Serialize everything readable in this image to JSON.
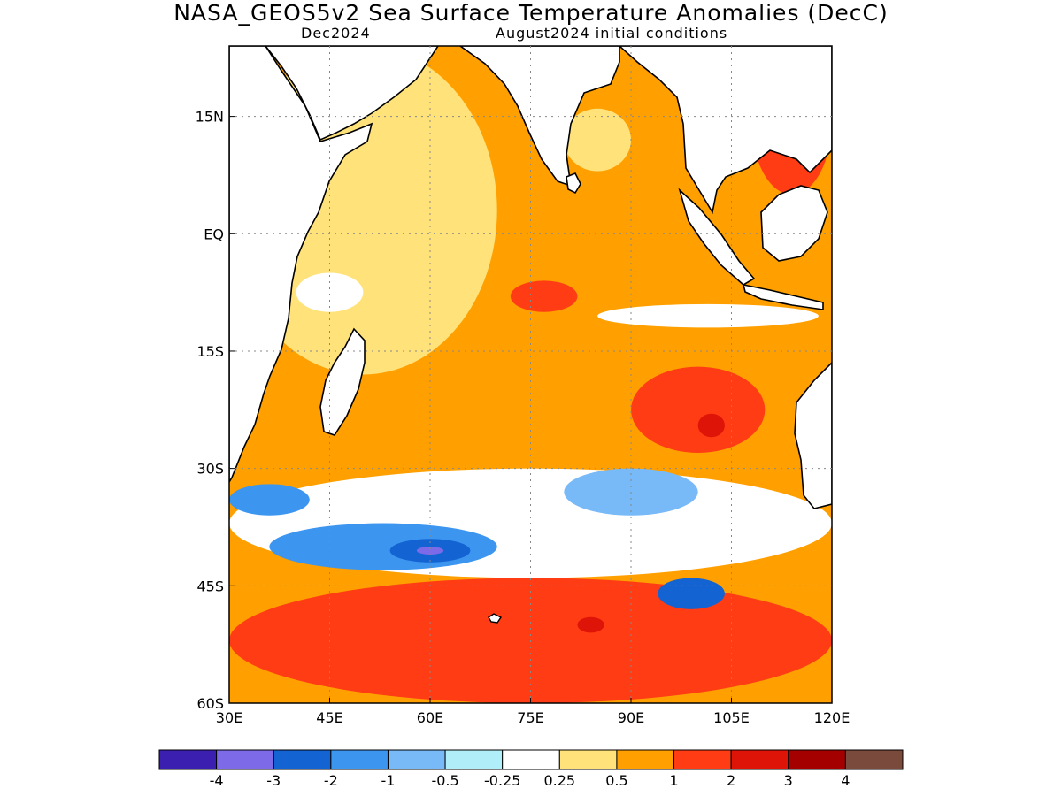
{
  "header": {
    "title": "NASA_GEOS5v2 Sea Surface Temperature Anomalies (DecC)",
    "valid_month": "Dec2024",
    "init_label": "August2024 initial conditions"
  },
  "map": {
    "lon_range": [
      30,
      120
    ],
    "lat_range": [
      -60,
      24
    ],
    "lon_ticks": [
      {
        "value": 30,
        "label": "30E"
      },
      {
        "value": 45,
        "label": "45E"
      },
      {
        "value": 60,
        "label": "60E"
      },
      {
        "value": 75,
        "label": "75E"
      },
      {
        "value": 90,
        "label": "90E"
      },
      {
        "value": 105,
        "label": "105E"
      },
      {
        "value": 120,
        "label": "120E"
      }
    ],
    "lat_ticks": [
      {
        "value": 15,
        "label": "15N"
      },
      {
        "value": 0,
        "label": "EQ"
      },
      {
        "value": -15,
        "label": "15S"
      },
      {
        "value": -30,
        "label": "30S"
      },
      {
        "value": -45,
        "label": "45S"
      },
      {
        "value": -60,
        "label": "60S"
      }
    ],
    "grid": true
  },
  "colorbar": {
    "colors": [
      "#3a1fb0",
      "#7d6ae8",
      "#1463d2",
      "#3c96f0",
      "#78b9f8",
      "#b0eefa",
      "#ffffff",
      "#ffe27a",
      "#ffa000",
      "#ff3c14",
      "#df1408",
      "#a50000",
      "#7a4a3c"
    ],
    "labels": [
      "-4",
      "-3",
      "-2",
      "-1",
      "-0.5",
      "-0.25",
      "0.25",
      "0.5",
      "1",
      "2",
      "3",
      "4"
    ]
  },
  "fields": {
    "land": "#ffffff",
    "base": "#ffa000",
    "regions": [
      {
        "lon": [
          30,
          120
        ],
        "lat": [
          -60,
          -44
        ],
        "level": "#ff3c14"
      },
      {
        "lon": [
          30,
          120
        ],
        "lat": [
          -44,
          -30
        ],
        "level": "#ffffff"
      },
      {
        "lon": [
          36,
          70
        ],
        "lat": [
          -43,
          -37
        ],
        "level": "#3c96f0"
      },
      {
        "lon": [
          54,
          66
        ],
        "lat": [
          -42,
          -39
        ],
        "level": "#1463d2"
      },
      {
        "lon": [
          58,
          62
        ],
        "lat": [
          -41,
          -40
        ],
        "level": "#7d6ae8"
      },
      {
        "lon": [
          30,
          42
        ],
        "lat": [
          -36,
          -32
        ],
        "level": "#3c96f0"
      },
      {
        "lon": [
          80,
          100
        ],
        "lat": [
          -36,
          -30
        ],
        "level": "#78b9f8"
      },
      {
        "lon": [
          94,
          104
        ],
        "lat": [
          -48,
          -44
        ],
        "level": "#1463d2"
      },
      {
        "lon": [
          90,
          110
        ],
        "lat": [
          -28,
          -17
        ],
        "level": "#ff3c14"
      },
      {
        "lon": [
          100,
          104
        ],
        "lat": [
          -26,
          -23
        ],
        "level": "#df1408"
      },
      {
        "lon": [
          80,
          88
        ],
        "lat": [
          -53,
          -47
        ],
        "level": "#ff3c14"
      },
      {
        "lon": [
          82,
          86
        ],
        "lat": [
          -51,
          -49
        ],
        "level": "#df1408"
      },
      {
        "lon": [
          30,
          70
        ],
        "lat": [
          -18,
          24
        ],
        "level": "#ffe27a"
      },
      {
        "lon": [
          40,
          50
        ],
        "lat": [
          -10,
          -5
        ],
        "level": "#ffffff"
      },
      {
        "lon": [
          72,
          82
        ],
        "lat": [
          -10,
          -6
        ],
        "level": "#ff3c14"
      },
      {
        "lon": [
          108,
          120
        ],
        "lat": [
          5,
          24
        ],
        "level": "#ff3c14"
      },
      {
        "lon": [
          80,
          90
        ],
        "lat": [
          8,
          16
        ],
        "level": "#ffe27a"
      },
      {
        "lon": [
          85,
          118
        ],
        "lat": [
          -12,
          -9
        ],
        "level": "#ffffff"
      }
    ]
  }
}
